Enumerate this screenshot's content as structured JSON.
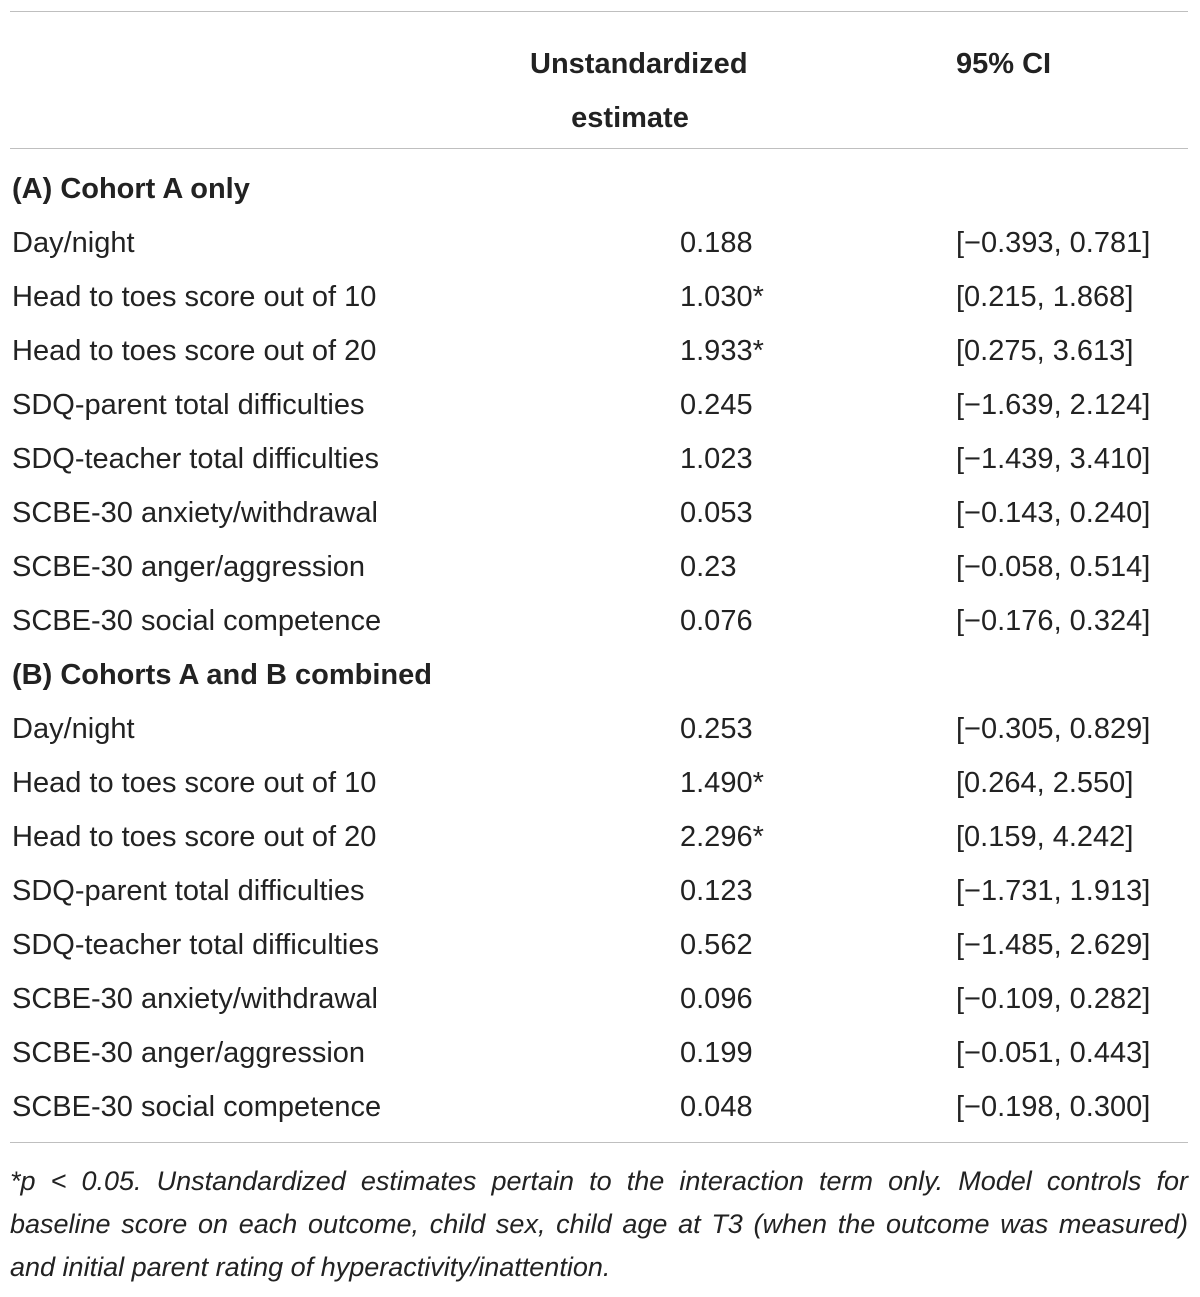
{
  "header": {
    "estimate_line1": "Unstandardized",
    "estimate_line2": "estimate",
    "ci": "95% CI"
  },
  "sections": [
    {
      "title": "(A) Cohort A only",
      "rows": [
        {
          "label": "Day/night",
          "estimate": "0.188",
          "ci": "[−0.393, 0.781]"
        },
        {
          "label": "Head to toes score out of 10",
          "estimate": "1.030*",
          "ci": "[0.215, 1.868]"
        },
        {
          "label": "Head to toes score out of 20",
          "estimate": "1.933*",
          "ci": "[0.275, 3.613]"
        },
        {
          "label": "SDQ-parent total difficulties",
          "estimate": "0.245",
          "ci": "[−1.639, 2.124]"
        },
        {
          "label": "SDQ-teacher total difficulties",
          "estimate": "1.023",
          "ci": "[−1.439, 3.410]"
        },
        {
          "label": "SCBE-30 anxiety/withdrawal",
          "estimate": "0.053",
          "ci": "[−0.143, 0.240]"
        },
        {
          "label": "SCBE-30 anger/aggression",
          "estimate": "0.23",
          "ci": "[−0.058, 0.514]"
        },
        {
          "label": "SCBE-30 social competence",
          "estimate": "0.076",
          "ci": "[−0.176, 0.324]"
        }
      ]
    },
    {
      "title": "(B) Cohorts A and B combined",
      "rows": [
        {
          "label": "Day/night",
          "estimate": "0.253",
          "ci": "[−0.305, 0.829]"
        },
        {
          "label": "Head to toes score out of 10",
          "estimate": "1.490*",
          "ci": "[0.264, 2.550]"
        },
        {
          "label": "Head to toes score out of 20",
          "estimate": "2.296*",
          "ci": "[0.159, 4.242]"
        },
        {
          "label": "SDQ-parent total difficulties",
          "estimate": "0.123",
          "ci": "[−1.731, 1.913]"
        },
        {
          "label": "SDQ-teacher total difficulties",
          "estimate": "0.562",
          "ci": "[−1.485, 2.629]"
        },
        {
          "label": "SCBE-30 anxiety/withdrawal",
          "estimate": "0.096",
          "ci": "[−0.109, 0.282]"
        },
        {
          "label": "SCBE-30 anger/aggression",
          "estimate": "0.199",
          "ci": "[−0.051, 0.443]"
        },
        {
          "label": "SCBE-30 social competence",
          "estimate": "0.048",
          "ci": "[−0.198, 0.300]"
        }
      ]
    }
  ],
  "footnote": "*p < 0.05. Unstandardized estimates pertain to the interaction term only. Model controls for baseline score on each outcome, child sex, child age at T3 (when the outcome was measured) and initial parent rating of hyperactivity/inattention."
}
